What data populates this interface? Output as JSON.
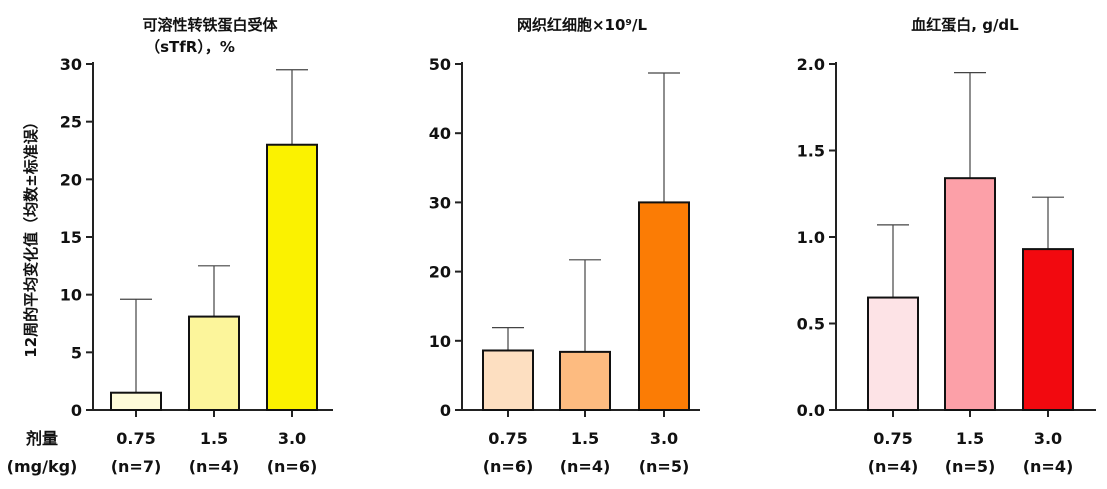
{
  "y_axis_label": "12周的平均变化值（均数±标准误）",
  "dose_label_line1": "剂量",
  "dose_label_line2": "(mg/kg)",
  "chart_data": [
    {
      "type": "bar",
      "title": "可溶性转铁蛋白受体",
      "subtitle": "（sTfR），%",
      "categories": [
        "0.75",
        "1.5",
        "3.0"
      ],
      "n_labels": [
        "(n=7)",
        "(n=4)",
        "(n=6)"
      ],
      "values": [
        1.5,
        8.1,
        23.0
      ],
      "errors": [
        8.1,
        4.4,
        6.5
      ],
      "colors": [
        "#fefbd9",
        "#fcf59b",
        "#fbf200"
      ],
      "ylim": [
        0,
        30
      ],
      "yticks": [
        "0",
        "5",
        "10",
        "15",
        "20",
        "25",
        "30"
      ]
    },
    {
      "type": "bar",
      "title": "网织红细胞×10⁹/L",
      "categories": [
        "0.75",
        "1.5",
        "3.0"
      ],
      "n_labels": [
        "(n=6)",
        "(n=4)",
        "(n=5)"
      ],
      "values": [
        8.6,
        8.4,
        30.0
      ],
      "errors": [
        3.3,
        13.3,
        18.7
      ],
      "colors": [
        "#fddfc1",
        "#fdbb80",
        "#fb7c05"
      ],
      "ylim": [
        0,
        50
      ],
      "yticks": [
        "0",
        "10",
        "20",
        "30",
        "40",
        "50"
      ]
    },
    {
      "type": "bar",
      "title": "血红蛋白, g/dL",
      "categories": [
        "0.75",
        "1.5",
        "3.0"
      ],
      "n_labels": [
        "(n=4)",
        "(n=5)",
        "(n=4)"
      ],
      "values": [
        0.65,
        1.34,
        0.93
      ],
      "errors": [
        0.42,
        0.61,
        0.3
      ],
      "colors": [
        "#fde3e6",
        "#fca0a8",
        "#f2090f"
      ],
      "ylim": [
        0,
        2.0
      ],
      "yticks": [
        "0.0",
        "0.5",
        "1.0",
        "1.5",
        "2.0"
      ]
    }
  ]
}
